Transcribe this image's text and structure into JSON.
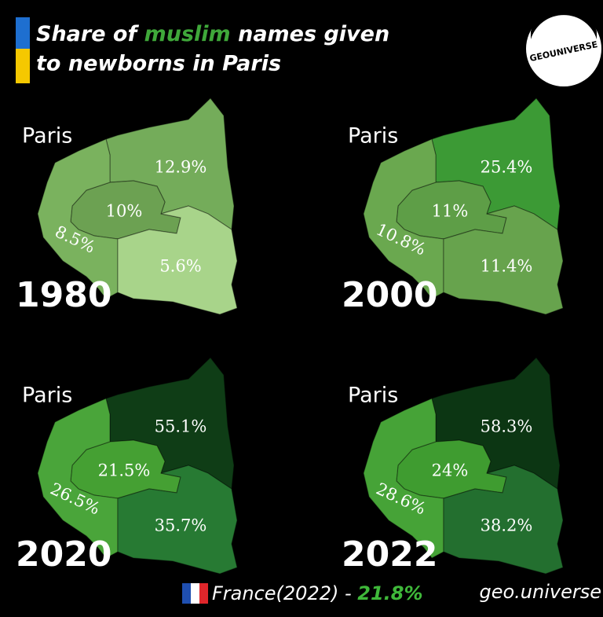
{
  "header": {
    "title": {
      "before": "Share of",
      "highlight": "muslim",
      "after": "names given",
      "line2": "to newborns in Paris"
    },
    "logo": "GEOUNIVERSE"
  },
  "panels": [
    {
      "place": "Paris",
      "year": "1980",
      "regions": [
        {
          "label": "12.9%",
          "color": "#74ac5a"
        },
        {
          "label": "10%",
          "color": "#6ca152"
        },
        {
          "label": "8.5%",
          "color": "#7ab25e"
        },
        {
          "label": "5.6%",
          "color": "#a8d48a"
        }
      ]
    },
    {
      "place": "Paris",
      "year": "2000",
      "regions": [
        {
          "label": "25.4%",
          "color": "#3c9a35"
        },
        {
          "label": "11%",
          "color": "#5e9e47"
        },
        {
          "label": "10.8%",
          "color": "#6aa84f"
        },
        {
          "label": "11.4%",
          "color": "#67a34d"
        }
      ]
    },
    {
      "place": "Paris",
      "year": "2020",
      "regions": [
        {
          "label": "55.1%",
          "color": "#0f3d16"
        },
        {
          "label": "21.5%",
          "color": "#45a033"
        },
        {
          "label": "26.5%",
          "color": "#4aa53a"
        },
        {
          "label": "35.7%",
          "color": "#277a33"
        }
      ]
    },
    {
      "place": "Paris",
      "year": "2022",
      "regions": [
        {
          "label": "58.3%",
          "color": "#0c3613"
        },
        {
          "label": "24%",
          "color": "#3f9c30"
        },
        {
          "label": "28.6%",
          "color": "#46a337"
        },
        {
          "label": "38.2%",
          "color": "#236f2f"
        }
      ]
    }
  ],
  "footer": {
    "country": "France(2022) - ",
    "value": "21.8%",
    "credit": "geo.universe"
  }
}
